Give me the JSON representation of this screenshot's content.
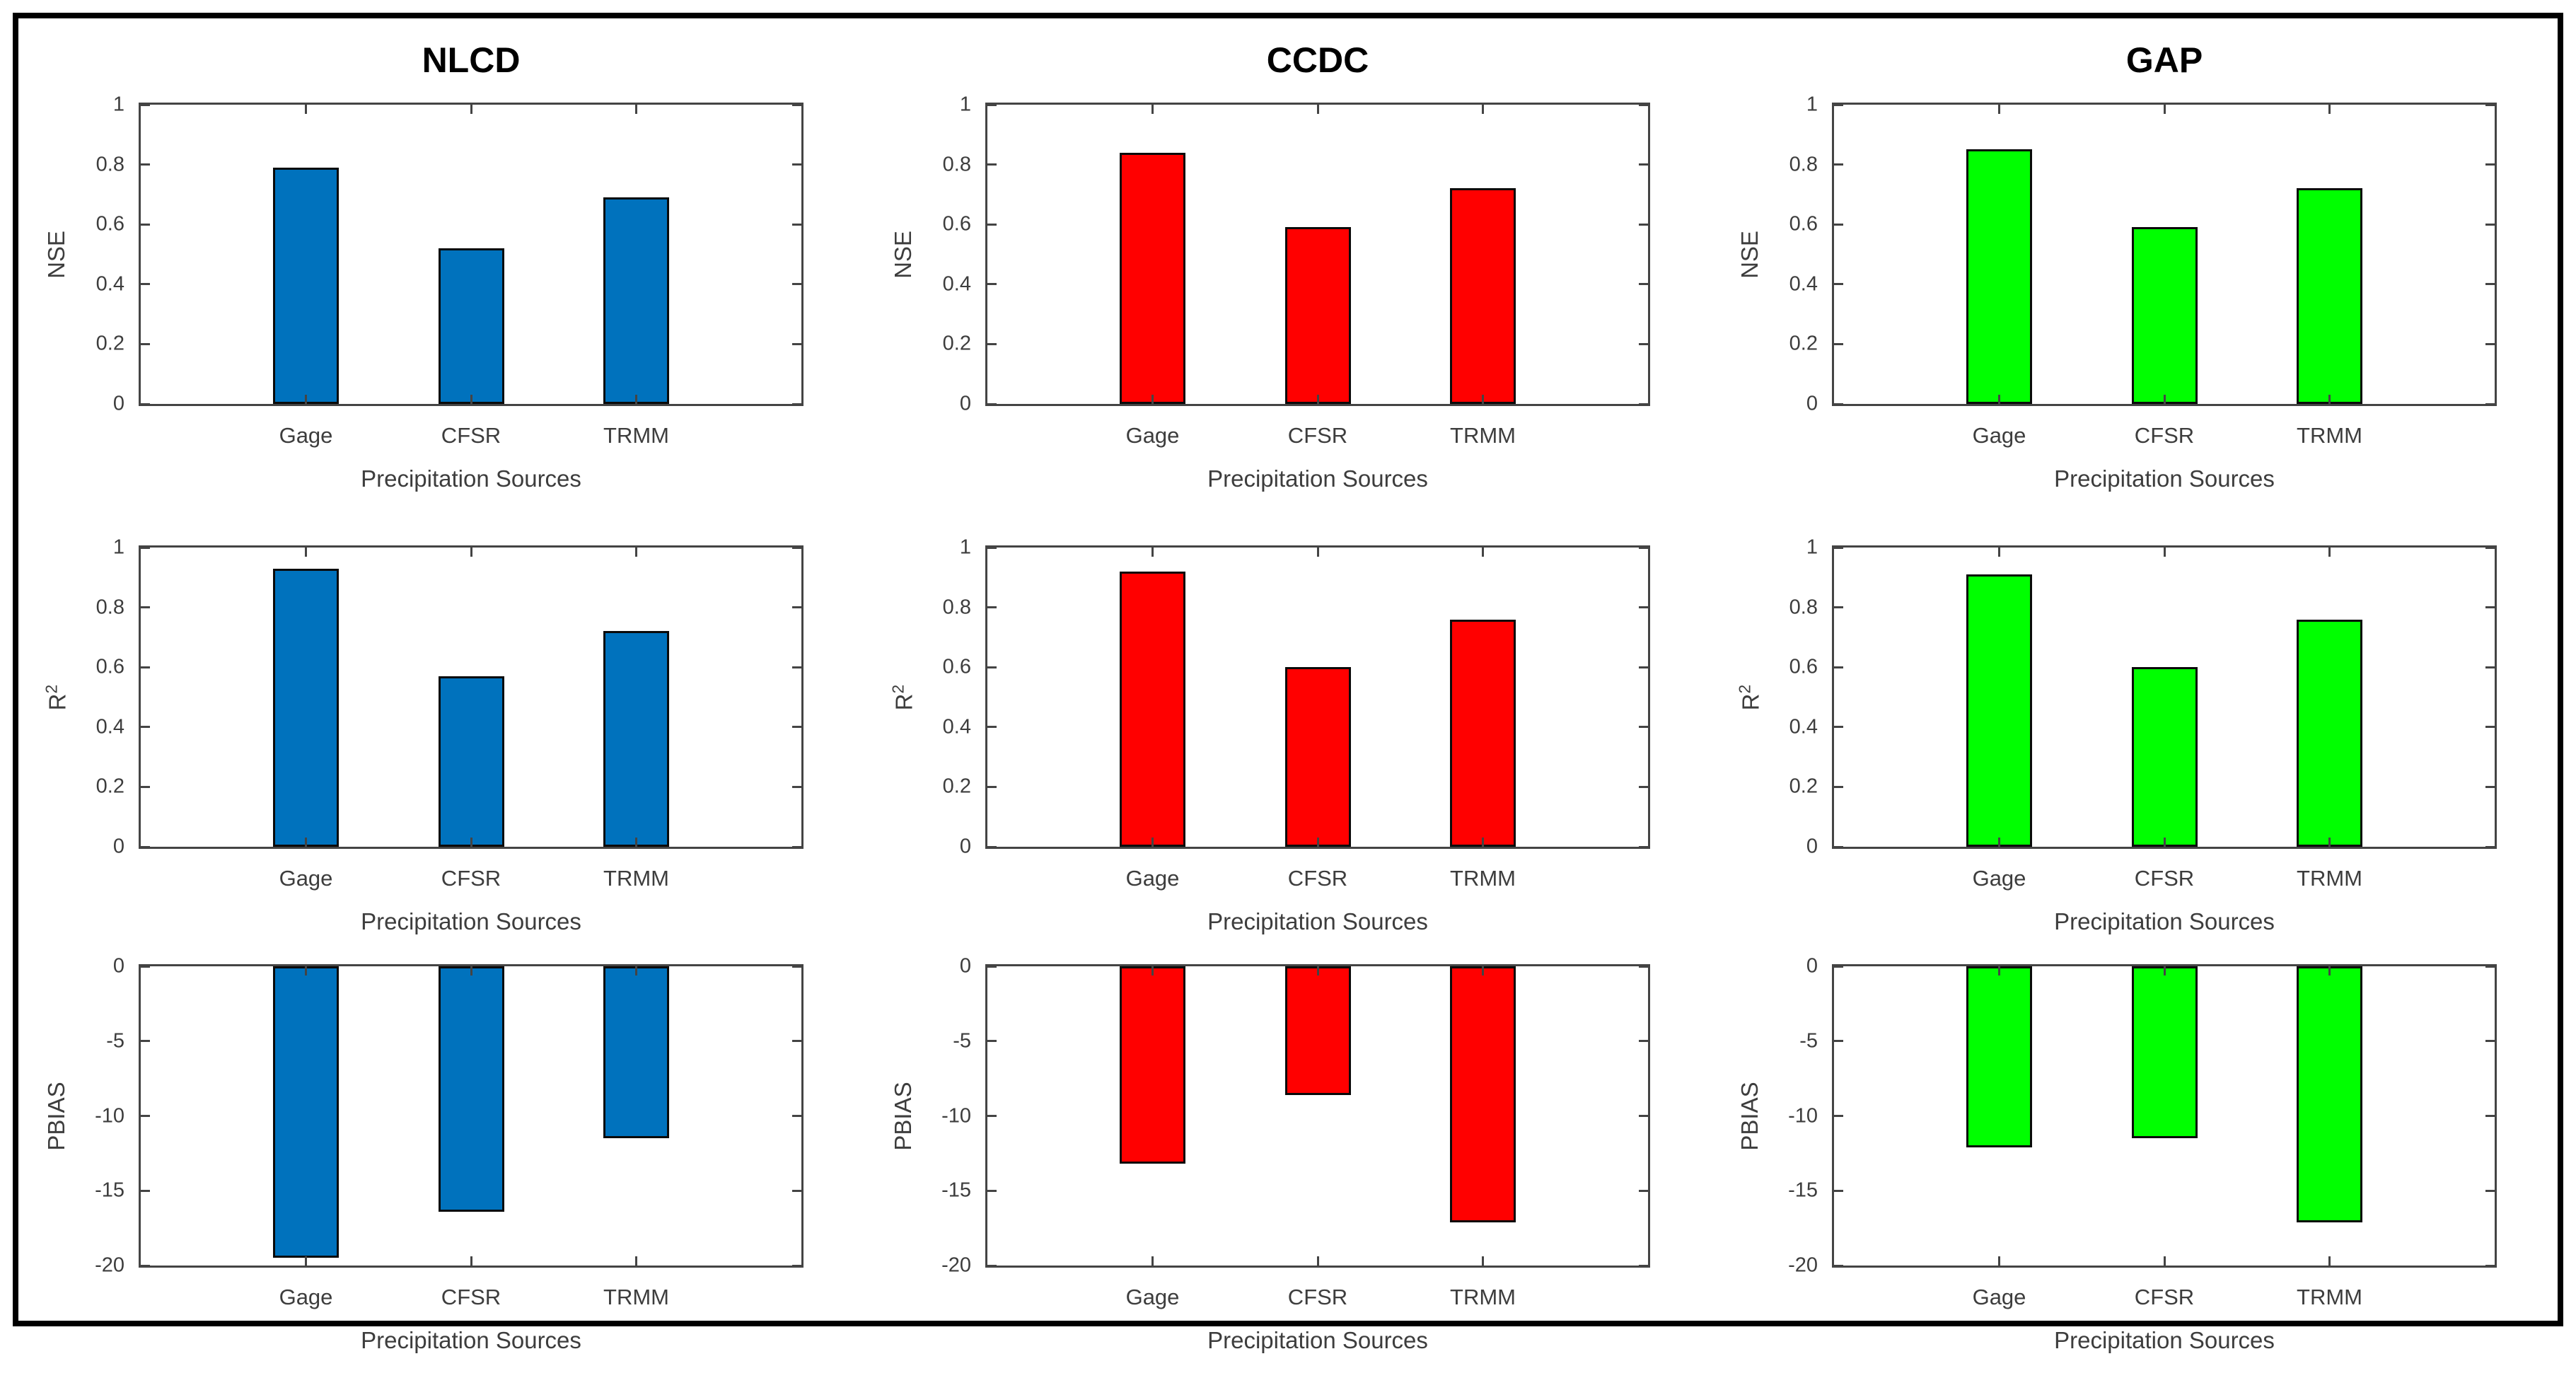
{
  "figure": {
    "column_titles": [
      "NLCD",
      "CCDC",
      "GAP"
    ],
    "row_metrics": [
      "NSE",
      "R²",
      "PBIAS"
    ],
    "x_axis_label": "Precipitation Sources",
    "categories": [
      "Gage",
      "CFSR",
      "TRMM"
    ],
    "colors": {
      "NLCD": "#0072BD",
      "CCDC": "#FF0000",
      "GAP": "#00FF00"
    },
    "frame_color": "#000000",
    "axis_color": "#444444",
    "text_color": "#3d3d3d"
  },
  "chart_data": [
    {
      "id": "nse-nlcd",
      "type": "bar",
      "title": "NLCD",
      "ylabel": "NSE",
      "xlabel": "Precipitation Sources",
      "categories": [
        "Gage",
        "CFSR",
        "TRMM"
      ],
      "values": [
        0.79,
        0.52,
        0.69
      ],
      "ylim": [
        0,
        1
      ],
      "yticks": [
        0,
        0.2,
        0.4,
        0.6,
        0.8,
        1
      ],
      "bar_color": "#0072BD",
      "grid": false
    },
    {
      "id": "nse-ccdc",
      "type": "bar",
      "title": "CCDC",
      "ylabel": "NSE",
      "xlabel": "Precipitation Sources",
      "categories": [
        "Gage",
        "CFSR",
        "TRMM"
      ],
      "values": [
        0.84,
        0.59,
        0.72
      ],
      "ylim": [
        0,
        1
      ],
      "yticks": [
        0,
        0.2,
        0.4,
        0.6,
        0.8,
        1
      ],
      "bar_color": "#FF0000",
      "grid": false
    },
    {
      "id": "nse-gap",
      "type": "bar",
      "title": "GAP",
      "ylabel": "NSE",
      "xlabel": "Precipitation Sources",
      "categories": [
        "Gage",
        "CFSR",
        "TRMM"
      ],
      "values": [
        0.85,
        0.59,
        0.72
      ],
      "ylim": [
        0,
        1
      ],
      "yticks": [
        0,
        0.2,
        0.4,
        0.6,
        0.8,
        1
      ],
      "bar_color": "#00FF00",
      "grid": false
    },
    {
      "id": "r2-nlcd",
      "type": "bar",
      "title": "",
      "ylabel": "R²",
      "xlabel": "Precipitation Sources",
      "categories": [
        "Gage",
        "CFSR",
        "TRMM"
      ],
      "values": [
        0.93,
        0.57,
        0.72
      ],
      "ylim": [
        0,
        1
      ],
      "yticks": [
        0,
        0.2,
        0.4,
        0.6,
        0.8,
        1
      ],
      "bar_color": "#0072BD",
      "grid": false
    },
    {
      "id": "r2-ccdc",
      "type": "bar",
      "title": "",
      "ylabel": "R²",
      "xlabel": "Precipitation Sources",
      "categories": [
        "Gage",
        "CFSR",
        "TRMM"
      ],
      "values": [
        0.92,
        0.6,
        0.76
      ],
      "ylim": [
        0,
        1
      ],
      "yticks": [
        0,
        0.2,
        0.4,
        0.6,
        0.8,
        1
      ],
      "bar_color": "#FF0000",
      "grid": false
    },
    {
      "id": "r2-gap",
      "type": "bar",
      "title": "",
      "ylabel": "R²",
      "xlabel": "Precipitation Sources",
      "categories": [
        "Gage",
        "CFSR",
        "TRMM"
      ],
      "values": [
        0.91,
        0.6,
        0.76
      ],
      "ylim": [
        0,
        1
      ],
      "yticks": [
        0,
        0.2,
        0.4,
        0.6,
        0.8,
        1
      ],
      "bar_color": "#00FF00",
      "grid": false
    },
    {
      "id": "pbias-nlcd",
      "type": "bar",
      "title": "",
      "ylabel": "PBIAS",
      "xlabel": "Precipitation Sources",
      "categories": [
        "Gage",
        "CFSR",
        "TRMM"
      ],
      "values": [
        -19.5,
        -16.4,
        -11.5
      ],
      "ylim": [
        -20,
        0
      ],
      "yticks": [
        -20,
        -15,
        -10,
        -5,
        0
      ],
      "bar_color": "#0072BD",
      "grid": false
    },
    {
      "id": "pbias-ccdc",
      "type": "bar",
      "title": "",
      "ylabel": "PBIAS",
      "xlabel": "Precipitation Sources",
      "categories": [
        "Gage",
        "CFSR",
        "TRMM"
      ],
      "values": [
        -13.2,
        -8.6,
        -17.1
      ],
      "ylim": [
        -20,
        0
      ],
      "yticks": [
        -20,
        -15,
        -10,
        -5,
        0
      ],
      "bar_color": "#FF0000",
      "grid": false
    },
    {
      "id": "pbias-gap",
      "type": "bar",
      "title": "",
      "ylabel": "PBIAS",
      "xlabel": "Precipitation Sources",
      "categories": [
        "Gage",
        "CFSR",
        "TRMM"
      ],
      "values": [
        -12.1,
        -11.5,
        -17.1
      ],
      "ylim": [
        -20,
        0
      ],
      "yticks": [
        -20,
        -15,
        -10,
        -5,
        0
      ],
      "bar_color": "#00FF00",
      "grid": false
    }
  ]
}
